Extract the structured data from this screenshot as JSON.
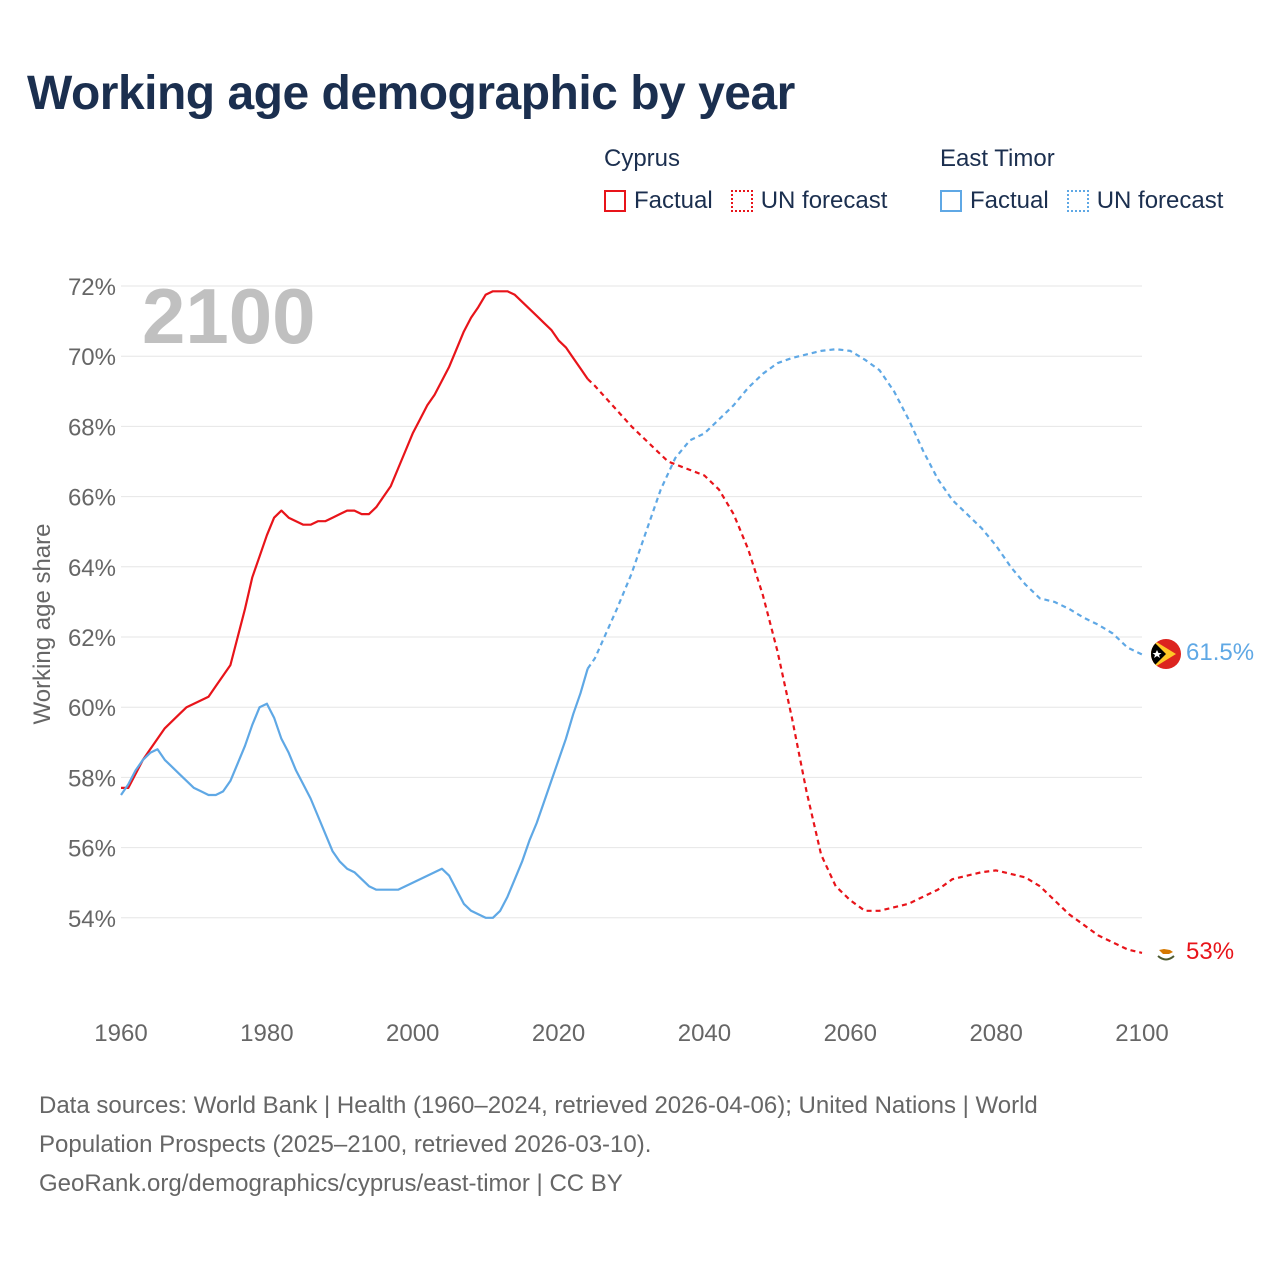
{
  "title": "Working age demographic by year",
  "legend": {
    "groups": [
      {
        "name": "Cyprus",
        "factual_label": "Factual",
        "forecast_label": "UN forecast",
        "color": "#e8141a"
      },
      {
        "name": "East Timor",
        "factual_label": "Factual",
        "forecast_label": "UN forecast",
        "color": "#5fa8e5"
      }
    ]
  },
  "year_label": "2100",
  "end_labels": {
    "east_timor": "61.5%",
    "cyprus": "53%"
  },
  "footer": {
    "line1": "Data sources: World Bank | Health (1960–2024, retrieved 2026-04-06); United Nations | World",
    "line2": "Population Prospects (2025–2100, retrieved 2026-03-10).",
    "line3": "GeoRank.org/demographics/cyprus/east-timor | CC BY"
  },
  "chart_data": {
    "type": "line",
    "title": "Working age demographic by year",
    "xlabel": "",
    "ylabel": "Working age share",
    "xlim": [
      1960,
      2100
    ],
    "ylim": [
      52,
      72
    ],
    "x_ticks": [
      "1960",
      "1980",
      "2000",
      "2020",
      "2040",
      "2060",
      "2080",
      "2100"
    ],
    "y_ticks": [
      "72%",
      "70%",
      "68%",
      "66%",
      "64%",
      "62%",
      "60%",
      "58%",
      "56%",
      "54%"
    ],
    "factual_until": 2024,
    "series": [
      {
        "name": "Cyprus",
        "color": "#e8141a",
        "x": [
          1960,
          1961,
          1962,
          1963,
          1964,
          1965,
          1966,
          1967,
          1968,
          1969,
          1970,
          1971,
          1972,
          1973,
          1974,
          1975,
          1976,
          1977,
          1978,
          1979,
          1980,
          1981,
          1982,
          1983,
          1984,
          1985,
          1986,
          1987,
          1988,
          1989,
          1990,
          1991,
          1992,
          1993,
          1994,
          1995,
          1996,
          1997,
          1998,
          1999,
          2000,
          2001,
          2002,
          2003,
          2004,
          2005,
          2006,
          2007,
          2008,
          2009,
          2010,
          2011,
          2012,
          2013,
          2014,
          2015,
          2016,
          2017,
          2018,
          2019,
          2020,
          2021,
          2022,
          2023,
          2024,
          2025,
          2030,
          2035,
          2040,
          2042,
          2044,
          2046,
          2048,
          2050,
          2052,
          2054,
          2056,
          2058,
          2060,
          2062,
          2064,
          2066,
          2068,
          2070,
          2072,
          2074,
          2076,
          2078,
          2080,
          2082,
          2084,
          2086,
          2088,
          2090,
          2092,
          2094,
          2096,
          2098,
          2100
        ],
        "values": [
          57.7,
          57.7,
          58.1,
          58.5,
          58.8,
          59.1,
          59.4,
          59.6,
          59.8,
          60.0,
          60.1,
          60.2,
          60.3,
          60.6,
          60.9,
          61.2,
          62.0,
          62.8,
          63.7,
          64.3,
          64.9,
          65.4,
          65.6,
          65.4,
          65.3,
          65.2,
          65.2,
          65.3,
          65.3,
          65.4,
          65.5,
          65.6,
          65.6,
          65.5,
          65.5,
          65.7,
          66.0,
          66.3,
          66.8,
          67.3,
          67.8,
          68.2,
          68.6,
          68.9,
          69.3,
          69.7,
          70.2,
          70.7,
          71.1,
          71.4,
          71.75,
          71.85,
          71.85,
          71.85,
          71.75,
          71.55,
          71.35,
          71.15,
          70.95,
          70.75,
          70.45,
          70.25,
          69.95,
          69.65,
          69.35,
          69.15,
          68.0,
          67.0,
          66.6,
          66.2,
          65.5,
          64.5,
          63.2,
          61.6,
          59.7,
          57.6,
          55.8,
          54.9,
          54.5,
          54.2,
          54.2,
          54.3,
          54.4,
          54.6,
          54.8,
          55.1,
          55.2,
          55.3,
          55.35,
          55.25,
          55.15,
          54.9,
          54.5,
          54.1,
          53.8,
          53.5,
          53.3,
          53.1,
          53.0
        ]
      },
      {
        "name": "East Timor",
        "color": "#5fa8e5",
        "x": [
          1960,
          1961,
          1962,
          1963,
          1964,
          1965,
          1966,
          1967,
          1968,
          1969,
          1970,
          1971,
          1972,
          1973,
          1974,
          1975,
          1976,
          1977,
          1978,
          1979,
          1980,
          1981,
          1982,
          1983,
          1984,
          1985,
          1986,
          1987,
          1988,
          1989,
          1990,
          1991,
          1992,
          1993,
          1994,
          1995,
          1996,
          1997,
          1998,
          1999,
          2000,
          2001,
          2002,
          2003,
          2004,
          2005,
          2006,
          2007,
          2008,
          2009,
          2010,
          2011,
          2012,
          2013,
          2014,
          2015,
          2016,
          2017,
          2018,
          2019,
          2020,
          2021,
          2022,
          2023,
          2024,
          2025,
          2028,
          2030,
          2032,
          2034,
          2036,
          2038,
          2040,
          2042,
          2044,
          2046,
          2048,
          2050,
          2052,
          2054,
          2056,
          2058,
          2060,
          2062,
          2064,
          2066,
          2068,
          2070,
          2072,
          2074,
          2076,
          2078,
          2080,
          2082,
          2084,
          2086,
          2088,
          2090,
          2092,
          2094,
          2096,
          2098,
          2100
        ],
        "values": [
          57.5,
          57.8,
          58.2,
          58.5,
          58.7,
          58.8,
          58.5,
          58.3,
          58.1,
          57.9,
          57.7,
          57.6,
          57.5,
          57.5,
          57.6,
          57.9,
          58.4,
          58.9,
          59.5,
          60.0,
          60.1,
          59.7,
          59.1,
          58.7,
          58.2,
          57.8,
          57.4,
          56.9,
          56.4,
          55.9,
          55.6,
          55.4,
          55.3,
          55.1,
          54.9,
          54.8,
          54.8,
          54.8,
          54.8,
          54.9,
          55.0,
          55.1,
          55.2,
          55.3,
          55.4,
          55.2,
          54.8,
          54.4,
          54.2,
          54.1,
          54.0,
          54.0,
          54.2,
          54.6,
          55.1,
          55.6,
          56.2,
          56.7,
          57.3,
          57.9,
          58.5,
          59.1,
          59.8,
          60.4,
          61.1,
          61.4,
          62.8,
          63.8,
          65.0,
          66.2,
          67.1,
          67.6,
          67.8,
          68.2,
          68.6,
          69.1,
          69.5,
          69.8,
          69.95,
          70.05,
          70.15,
          70.2,
          70.15,
          69.9,
          69.6,
          69.0,
          68.2,
          67.3,
          66.5,
          65.9,
          65.5,
          65.1,
          64.6,
          64.0,
          63.5,
          63.1,
          63.0,
          62.8,
          62.55,
          62.35,
          62.1,
          61.7,
          61.5
        ]
      }
    ]
  }
}
